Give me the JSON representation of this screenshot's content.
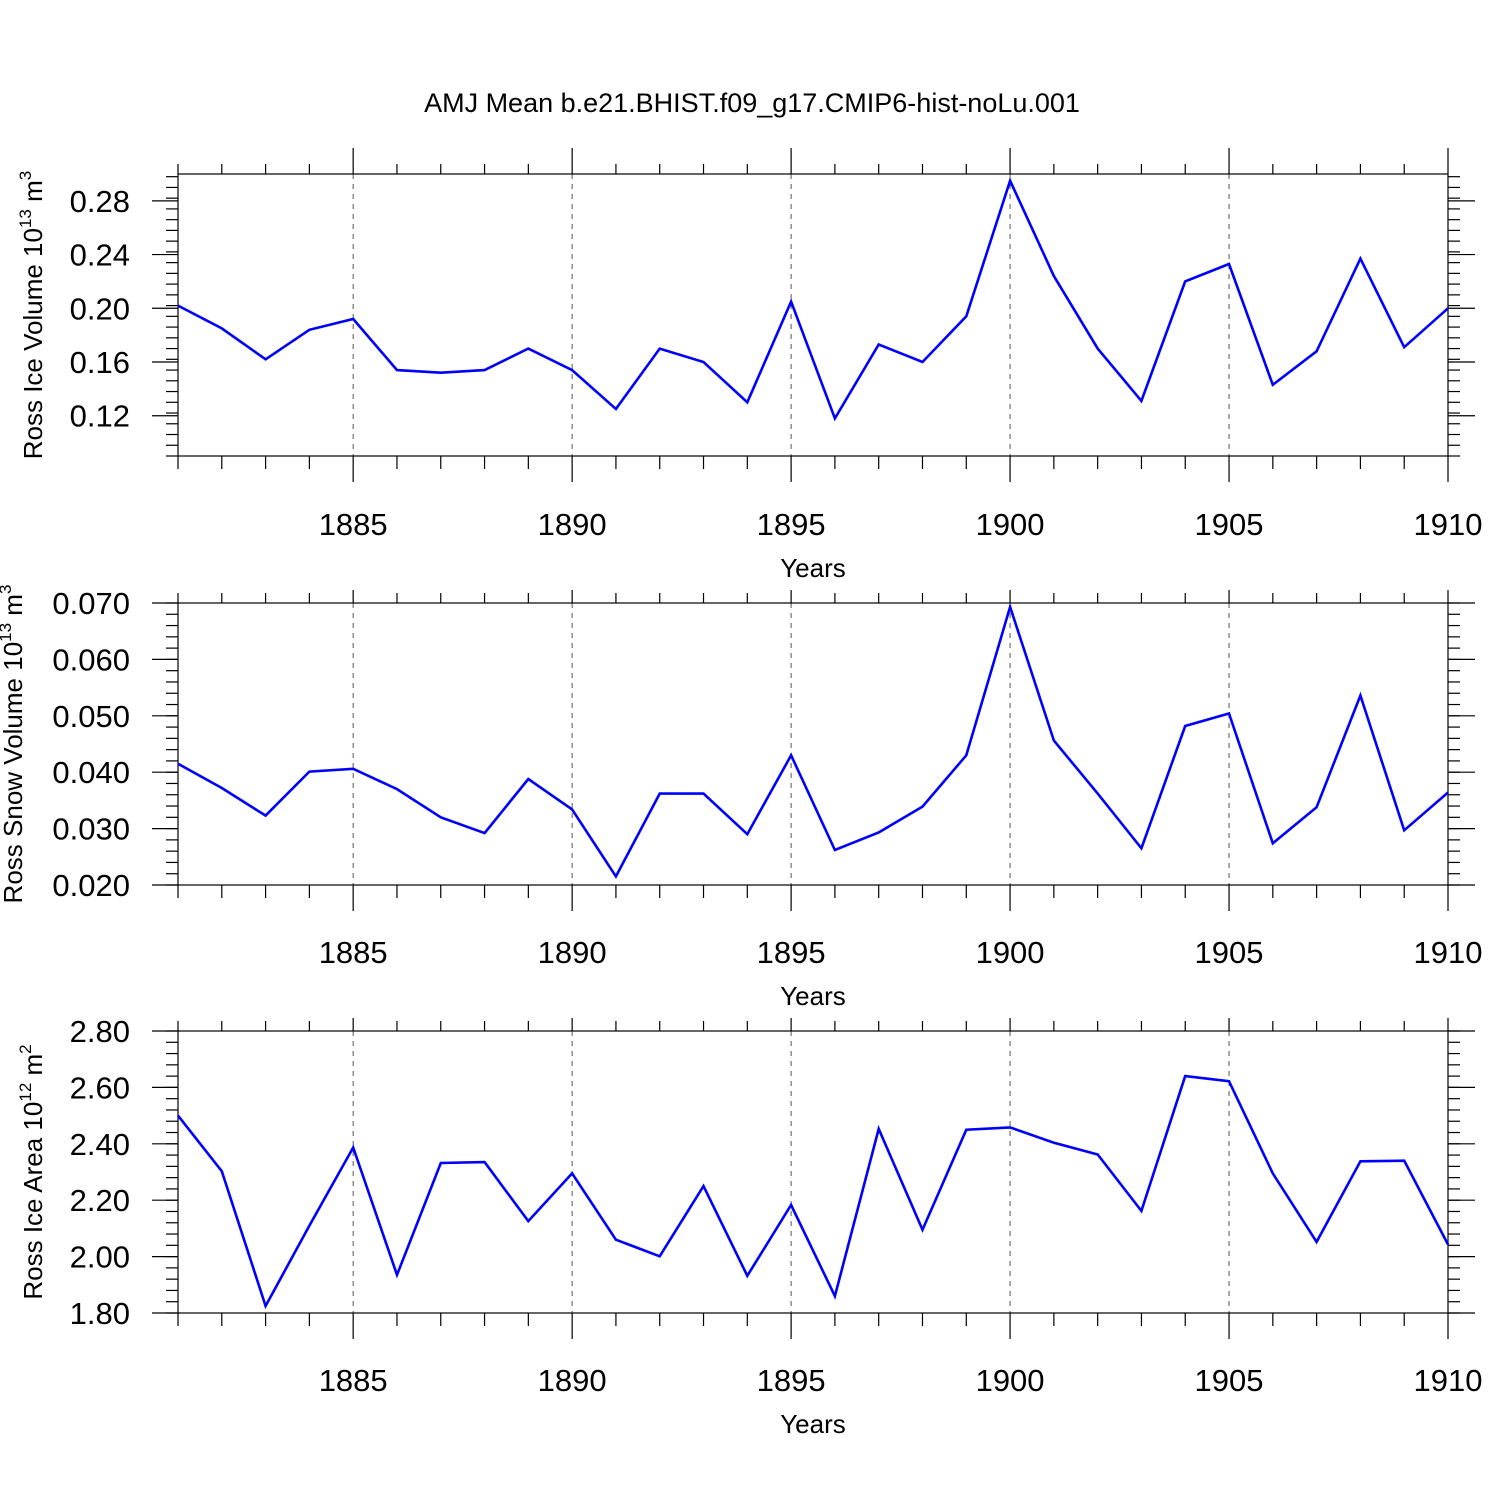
{
  "title": "AMJ Mean b.e21.BHIST.f09_g17.CMIP6-hist-noLu.001",
  "colors": {
    "line": "#0000ff",
    "axis": "#000000",
    "grid": "#555555"
  },
  "chart_data": [
    {
      "type": "line",
      "ylabel_main": "Ross Ice Volume 10",
      "ylabel_exp": "13",
      "ylabel_unit": " m",
      "ylabel_unit_exp": "3",
      "xlabel": "Years",
      "xlim": [
        1881,
        1910
      ],
      "ylim": [
        0.09,
        0.3
      ],
      "xticks": [
        1885,
        1890,
        1895,
        1900,
        1905,
        1910
      ],
      "xtick_labels": [
        "1885",
        "1890",
        "1895",
        "1900",
        "1905",
        "1910"
      ],
      "yticks": [
        0.12,
        0.16,
        0.2,
        0.24,
        0.28
      ],
      "ytick_labels": [
        "0.12",
        "0.16",
        "0.20",
        "0.24",
        "0.28"
      ],
      "y_minor_step": 0.008,
      "x": [
        1881,
        1882,
        1883,
        1884,
        1885,
        1886,
        1887,
        1888,
        1889,
        1890,
        1891,
        1892,
        1893,
        1894,
        1895,
        1896,
        1897,
        1898,
        1899,
        1900,
        1901,
        1902,
        1903,
        1904,
        1905,
        1906,
        1907,
        1908,
        1909,
        1910
      ],
      "values": [
        0.202,
        0.185,
        0.162,
        0.184,
        0.192,
        0.154,
        0.152,
        0.154,
        0.17,
        0.154,
        0.125,
        0.17,
        0.16,
        0.13,
        0.205,
        0.118,
        0.173,
        0.16,
        0.194,
        0.295,
        0.224,
        0.17,
        0.131,
        0.22,
        0.233,
        0.143,
        0.168,
        0.237,
        0.171,
        0.2
      ]
    },
    {
      "type": "line",
      "ylabel_main": "Ross Snow Volume 10",
      "ylabel_exp": "13",
      "ylabel_unit": " m",
      "ylabel_unit_exp": "3",
      "xlabel": "Years",
      "xlim": [
        1881,
        1910
      ],
      "ylim": [
        0.02,
        0.07
      ],
      "xticks": [
        1885,
        1890,
        1895,
        1900,
        1905,
        1910
      ],
      "xtick_labels": [
        "1885",
        "1890",
        "1895",
        "1900",
        "1905",
        "1910"
      ],
      "yticks": [
        0.02,
        0.03,
        0.04,
        0.05,
        0.06,
        0.07
      ],
      "ytick_labels": [
        "0.020",
        "0.030",
        "0.040",
        "0.050",
        "0.060",
        "0.070"
      ],
      "y_minor_step": 0.002,
      "x": [
        1881,
        1882,
        1883,
        1884,
        1885,
        1886,
        1887,
        1888,
        1889,
        1890,
        1891,
        1892,
        1893,
        1894,
        1895,
        1896,
        1897,
        1898,
        1899,
        1900,
        1901,
        1902,
        1903,
        1904,
        1905,
        1906,
        1907,
        1908,
        1909,
        1910
      ],
      "values": [
        0.0415,
        0.0372,
        0.0323,
        0.0401,
        0.0406,
        0.037,
        0.032,
        0.0292,
        0.0388,
        0.0334,
        0.0215,
        0.0362,
        0.0362,
        0.029,
        0.043,
        0.0262,
        0.0293,
        0.0339,
        0.043,
        0.0693,
        0.0456,
        0.0362,
        0.0265,
        0.0482,
        0.0504,
        0.0274,
        0.0338,
        0.0536,
        0.0297,
        0.0364
      ]
    },
    {
      "type": "line",
      "ylabel_main": "Ross Ice Area 10",
      "ylabel_exp": "12",
      "ylabel_unit": " m",
      "ylabel_unit_exp": "2",
      "xlabel": "Years",
      "xlim": [
        1881,
        1910
      ],
      "ylim": [
        1.8,
        2.8
      ],
      "xticks": [
        1885,
        1890,
        1895,
        1900,
        1905,
        1910
      ],
      "xtick_labels": [
        "1885",
        "1890",
        "1895",
        "1900",
        "1905",
        "1910"
      ],
      "yticks": [
        1.8,
        2.0,
        2.2,
        2.4,
        2.6,
        2.8
      ],
      "ytick_labels": [
        "1.80",
        "2.00",
        "2.20",
        "2.40",
        "2.60",
        "2.80"
      ],
      "y_minor_step": 0.04,
      "x": [
        1881,
        1882,
        1883,
        1884,
        1885,
        1886,
        1887,
        1888,
        1889,
        1890,
        1891,
        1892,
        1893,
        1894,
        1895,
        1896,
        1897,
        1898,
        1899,
        1900,
        1901,
        1902,
        1903,
        1904,
        1905,
        1906,
        1907,
        1908,
        1909,
        1910
      ],
      "values": [
        2.5,
        2.303,
        1.825,
        2.11,
        2.387,
        1.935,
        2.332,
        2.335,
        2.126,
        2.295,
        2.06,
        2.001,
        2.25,
        1.932,
        2.183,
        1.86,
        2.453,
        2.095,
        2.45,
        2.458,
        2.404,
        2.362,
        2.162,
        2.64,
        2.622,
        2.295,
        2.052,
        2.338,
        2.34,
        2.043
      ]
    }
  ]
}
